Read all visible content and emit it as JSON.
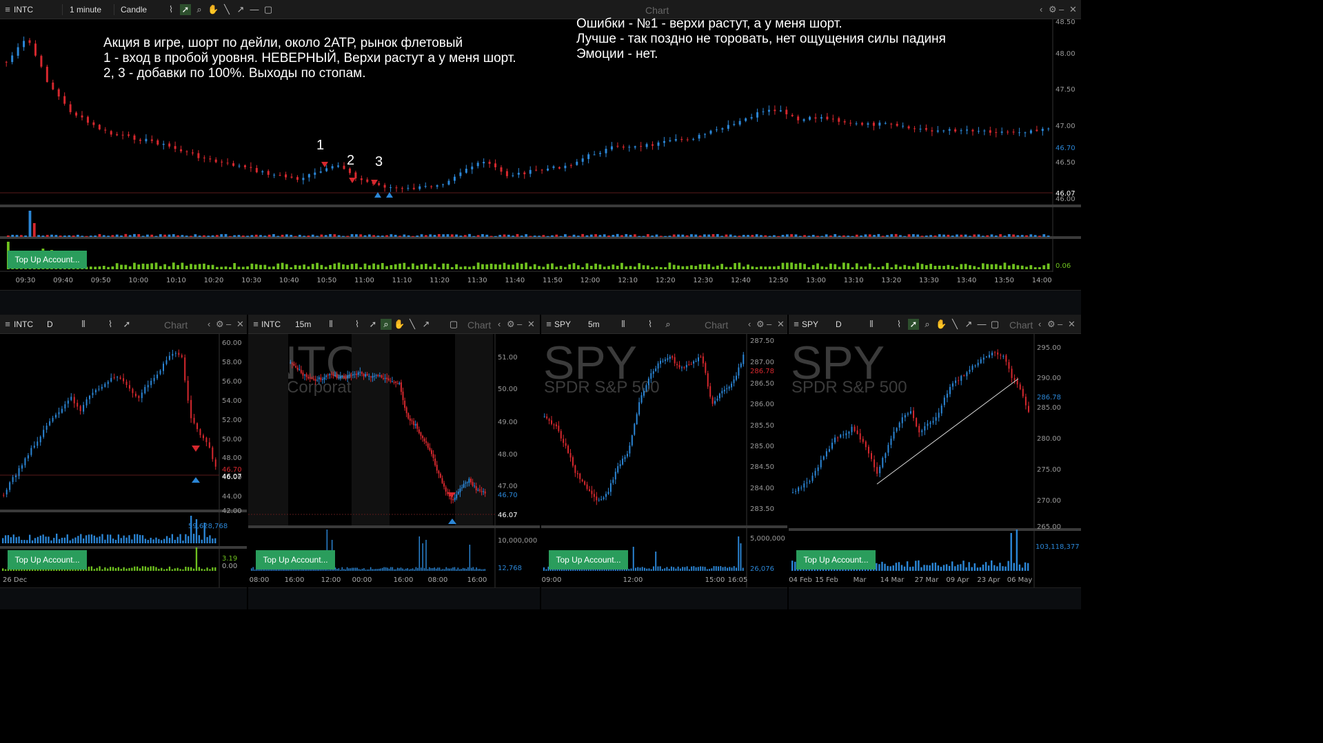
{
  "main": {
    "toolbar": {
      "symbol": "INTC",
      "timeframe": "1 minute",
      "chart_type": "Candle",
      "title": "Chart"
    },
    "note_left": "Акция в игре, шорт по дейли, около 2АТР, рынок флетовый\n1 - вход в пробой уровня. НЕВЕРНЫЙ, Верхи растут а у меня шорт.\n2, 3 - добавки по 100%. Выходы по стопам.",
    "note_right": "Ошибки - №1 - верхи растут, а у меня шорт.\nЛучше - так поздно не торовать, нет ощущения силы падиня\nЭмоции - нет.",
    "markers": [
      "1",
      "2",
      "3"
    ],
    "price_labels": [
      "48.50",
      "48.00",
      "47.50",
      "47.00",
      "46.50",
      "46.00"
    ],
    "last_price": "46.70",
    "level_price": "46.07",
    "volume_value": "0.06",
    "time_labels": [
      "09:30",
      "09:40",
      "09:50",
      "10:00",
      "10:10",
      "10:20",
      "10:30",
      "10:40",
      "10:50",
      "11:00",
      "11:10",
      "11:20",
      "11:30",
      "11:40",
      "11:50",
      "12:00",
      "12:10",
      "12:20",
      "12:30",
      "12:40",
      "12:50",
      "13:00",
      "13:10",
      "13:20",
      "13:30",
      "13:40",
      "13:50",
      "14:00"
    ],
    "top_up": "Top Up Account..."
  },
  "p1": {
    "toolbar": {
      "symbol": "INTC",
      "timeframe": "D",
      "title": "Chart"
    },
    "price_labels": [
      "60.00",
      "58.00",
      "56.00",
      "54.00",
      "52.00",
      "50.00",
      "48.00",
      "46.00",
      "44.00",
      "42.00"
    ],
    "last_price": "46.70",
    "level_price": "46.07",
    "volume_value": "59,628,768",
    "ind_values": [
      "3.19",
      "0.00"
    ],
    "date_label": "26 Dec",
    "top_up": "Top Up Account..."
  },
  "p2": {
    "toolbar": {
      "symbol": "INTC",
      "timeframe": "15m",
      "title": "Chart"
    },
    "watermark": "INTC",
    "watermark_sub": "Intel Corporation",
    "price_labels": [
      "51.00",
      "50.00",
      "49.00",
      "48.00",
      "47.00"
    ],
    "last_price": "46.70",
    "level_price": "46.07",
    "volume_labels": [
      "10,000,000",
      "12,768"
    ],
    "time_labels": [
      "08:00",
      "16:00",
      "12:00",
      "00:00",
      "16:00",
      "08:00",
      "16:00"
    ],
    "top_up": "Top Up Account..."
  },
  "p3": {
    "toolbar": {
      "symbol": "SPY",
      "timeframe": "5m",
      "title": "Chart"
    },
    "watermark": "SPY",
    "watermark_sub": "SPDR S&P 500",
    "price_labels": [
      "287.50",
      "287.00",
      "286.50",
      "286.00",
      "285.50",
      "285.00",
      "284.50",
      "284.00",
      "283.50"
    ],
    "last_price": "286.78",
    "volume_labels": [
      "5,000,000",
      "26,076"
    ],
    "time_labels": [
      "09:00",
      "12:00",
      "15:00",
      "16:05"
    ],
    "top_up": "Top Up Account..."
  },
  "p4": {
    "toolbar": {
      "symbol": "SPY",
      "timeframe": "D",
      "title": "Chart"
    },
    "watermark": "SPY",
    "watermark_sub": "SPDR S&P 500",
    "price_labels": [
      "295.00",
      "290.00",
      "285.00",
      "280.00",
      "275.00",
      "270.00",
      "265.00"
    ],
    "last_price": "286.78",
    "volume_value": "103,118,377",
    "time_labels": [
      "04 Feb",
      "15 Feb",
      "Mar",
      "14 Mar",
      "27 Mar",
      "09 Apr",
      "23 Apr",
      "06 May"
    ],
    "top_up": "Top Up Account..."
  },
  "colors": {
    "up": "#2b86d6",
    "down": "#d6282e",
    "vol_green": "#6fc21f",
    "topup": "#2a9d5c"
  },
  "icons": [
    "indicator-icon",
    "cursor-icon",
    "zoom-icon",
    "hand-icon",
    "line-icon",
    "arrow-icon",
    "hline-icon",
    "rect-icon",
    "gear-icon",
    "minimize-icon",
    "close-icon",
    "chevron-left-icon",
    "candle-icon"
  ]
}
